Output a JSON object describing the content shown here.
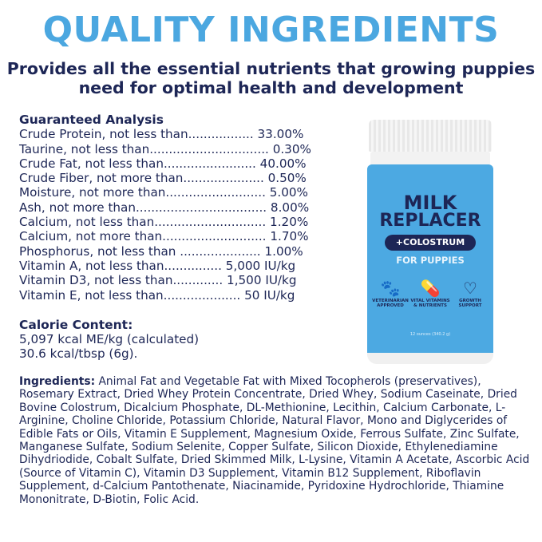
{
  "header": {
    "title": "QUALITY INGREDIENTS",
    "subtitle": "Provides all the essential nutrients that growing puppies need for optimal health and development"
  },
  "guaranteed_analysis": {
    "heading": "Guaranteed Analysis",
    "rows": [
      "Crude Protein, not less than................. 33.00%",
      "Taurine, not less than............................... 0.30%",
      "Crude Fat, not less than........................ 40.00%",
      "Crude Fiber, not more than..................... 0.50%",
      "Moisture, not more than.......................... 5.00%",
      "Ash, not more than.................................. 8.00%",
      "Calcium, not less than............................. 1.20%",
      "Calcium, not more than........................... 1.70%",
      "Phosphorus, not less than ..................... 1.00%",
      "Vitamin A, not less than............... 5,000 IU/kg",
      "Vitamin D3, not less than............. 1,500 IU/kg",
      "Vitamin E, not less than.................... 50 IU/kg"
    ]
  },
  "calorie": {
    "heading": "Calorie Content:",
    "lines": [
      "5,097 kcal ME/kg (calculated)",
      "30.6 kcal/tbsp (6g)."
    ]
  },
  "ingredients": {
    "label": "Ingredients:",
    "text": " Animal Fat and Vegetable Fat with Mixed Tocopherols (preservatives), Rosemary Extract, Dried Whey Protein Concentrate, Dried Whey, Sodium Caseinate, Dried Bovine Colostrum, Dicalcium Phosphate, DL-Methionine, Lecithin, Calcium Carbonate, L-Arginine, Choline Chloride, Potassium Chloride, Natural Flavor, Mono and Diglycerides of Edible Fats or Oils, Vitamin E Supplement, Magnesium Oxide, Ferrous Sulfate, Zinc Sulfate, Manganese Sulfate, Sodium Selenite, Copper Sulfate, Silicon Dioxide, Ethylenediamine Dihydriodide, Cobalt Sulfate, Dried Skimmed Milk, L-Lysine, Vitamin A Acetate, Ascorbic Acid (Source of Vitamin C), Vitamin D3 Supplement, Vitamin B12 Supplement, Riboflavin Supplement, d-Calcium Pantothenate, Niacinamide, Pyridoxine Hydrochloride, Thiamine Mononitrate, D-Biotin, Folic Acid."
  },
  "product": {
    "line1": "MILK",
    "line2": "REPLACER",
    "badge": "+COLOSTRUM",
    "for": "FOR PUPPIES",
    "net": "12 ounces (340.2 g)",
    "icons": [
      {
        "icon": "paw-cross-icon",
        "label": "VETERINARIAN APPROVED"
      },
      {
        "icon": "capsule-icon",
        "label": "VITAL VITAMINS & NUTRIENTS"
      },
      {
        "icon": "heart-check-icon",
        "label": "GROWTH SUPPORT"
      }
    ]
  },
  "colors": {
    "accent": "#4ba7e0",
    "navy": "#1d2656",
    "jar": "#4ca9e2"
  }
}
